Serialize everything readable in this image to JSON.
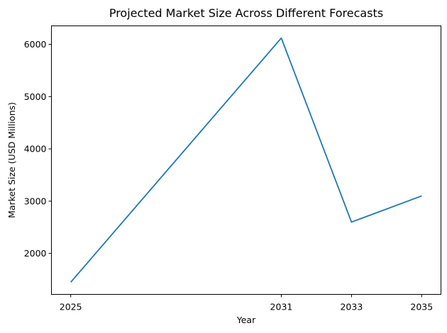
{
  "chart_data": {
    "type": "line",
    "title": "Projected Market Size Across Different Forecasts",
    "xlabel": "Year",
    "ylabel": "Market Size (USD Millions)",
    "x": [
      2025,
      2031,
      2033,
      2035
    ],
    "x_ticks": [
      "2025",
      "2031",
      "2033",
      "2035"
    ],
    "y_ticks": [
      2000,
      3000,
      4000,
      5000,
      6000
    ],
    "series": [
      {
        "values": [
          1450,
          6120,
          2600,
          3100
        ],
        "color": "#1f77b4"
      }
    ],
    "xlim": [
      2024.45,
      2035.55
    ],
    "ylim": [
      1217,
      6353
    ],
    "grid": false,
    "legend": "none"
  }
}
